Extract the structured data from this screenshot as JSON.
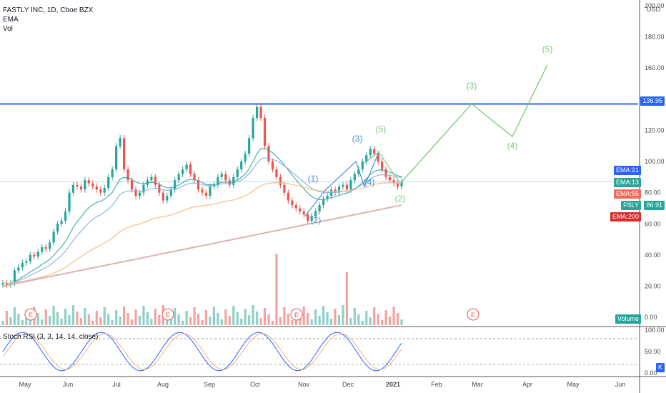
{
  "legend": {
    "title": "FASTLY INC, 1D, Cboe BZX",
    "line2": "EMA",
    "line3": "Vol"
  },
  "rsi_label": "Stoch RSI (3, 3, 14, 14, close)",
  "currency": "USD",
  "badges": {
    "price_line": "136.95",
    "ema21": "EMA:21",
    "ema13": "EMA:13",
    "ema55": "EMA:55",
    "fsly": "FSLY",
    "fsly_value": "86.91",
    "ema200": "EMA:200",
    "volume": "Volume",
    "k": "K"
  },
  "colors": {
    "up": "#26a69a",
    "down": "#ef5350",
    "ema200": "#d2a8a0",
    "ema55": "#f7c08a",
    "ema21": "#2962ff",
    "ema13": "#27a699",
    "projection": "#7dc67a",
    "wave_blue": "#4a90d9",
    "resistance": "#2962ff"
  },
  "chart_data": {
    "type": "candlestick",
    "title": "FASTLY INC, 1D, Cboe BZX",
    "ylim": [
      -5,
      200
    ],
    "y_ticks": [
      "200.00",
      "180.00",
      "160.00",
      "140.00",
      "120.00",
      "100.00",
      "80.00",
      "60.00",
      "40.00",
      "20.00",
      "0.00"
    ],
    "y_tick_values": [
      200,
      180,
      160,
      140,
      120,
      100,
      80,
      60,
      40,
      20,
      0
    ],
    "x_ticks": [
      "May",
      "Jun",
      "Jul",
      "Aug",
      "Sep",
      "Oct",
      "Nov",
      "Dec",
      "2021",
      "Feb",
      "Mar",
      "Apr",
      "May",
      "Jun"
    ],
    "resistance_level": 136.95,
    "last_price": 86.91,
    "series": [
      {
        "name": "FSLY",
        "type": "candles",
        "points": [
          [
            21,
            22
          ],
          [
            22,
            21
          ],
          [
            21,
            22
          ],
          [
            22,
            30
          ],
          [
            30,
            32
          ],
          [
            32,
            35
          ],
          [
            35,
            36
          ],
          [
            36,
            40
          ],
          [
            40,
            39
          ],
          [
            39,
            42
          ],
          [
            42,
            45
          ],
          [
            45,
            44
          ],
          [
            44,
            48
          ],
          [
            48,
            55
          ],
          [
            55,
            60
          ],
          [
            60,
            62
          ],
          [
            62,
            68
          ],
          [
            68,
            80
          ],
          [
            80,
            85
          ],
          [
            85,
            84
          ],
          [
            84,
            82
          ],
          [
            82,
            88
          ],
          [
            88,
            86
          ],
          [
            86,
            84
          ],
          [
            84,
            82
          ],
          [
            82,
            80
          ],
          [
            80,
            83
          ],
          [
            83,
            90
          ],
          [
            90,
            95
          ],
          [
            95,
            110
          ],
          [
            110,
            115
          ],
          [
            115,
            95
          ],
          [
            95,
            88
          ],
          [
            88,
            82
          ],
          [
            82,
            78
          ],
          [
            78,
            80
          ],
          [
            80,
            85
          ],
          [
            85,
            88
          ],
          [
            88,
            90
          ],
          [
            90,
            85
          ],
          [
            85,
            80
          ],
          [
            80,
            75
          ],
          [
            75,
            78
          ],
          [
            78,
            82
          ],
          [
            82,
            88
          ],
          [
            88,
            92
          ],
          [
            92,
            95
          ],
          [
            95,
            98
          ],
          [
            98,
            92
          ],
          [
            92,
            88
          ],
          [
            88,
            82
          ],
          [
            82,
            80
          ],
          [
            80,
            78
          ],
          [
            78,
            84
          ],
          [
            84,
            85
          ],
          [
            85,
            90
          ],
          [
            90,
            92
          ],
          [
            92,
            88
          ],
          [
            88,
            85
          ],
          [
            85,
            90
          ],
          [
            90,
            95
          ],
          [
            95,
            100
          ],
          [
            100,
            105
          ],
          [
            105,
            115
          ],
          [
            115,
            128
          ],
          [
            128,
            135
          ],
          [
            135,
            128
          ],
          [
            128,
            110
          ],
          [
            110,
            100
          ],
          [
            100,
            95
          ],
          [
            95,
            90
          ],
          [
            90,
            85
          ],
          [
            85,
            80
          ],
          [
            80,
            75
          ],
          [
            75,
            72
          ],
          [
            72,
            70
          ],
          [
            70,
            68
          ],
          [
            68,
            66
          ],
          [
            66,
            62
          ],
          [
            62,
            65
          ],
          [
            65,
            68
          ],
          [
            68,
            72
          ],
          [
            72,
            76
          ],
          [
            76,
            78
          ],
          [
            78,
            82
          ],
          [
            82,
            80
          ],
          [
            80,
            84
          ],
          [
            84,
            85
          ],
          [
            85,
            82
          ],
          [
            82,
            88
          ],
          [
            88,
            92
          ],
          [
            92,
            95
          ],
          [
            95,
            100
          ],
          [
            100,
            104
          ],
          [
            104,
            108
          ],
          [
            108,
            105
          ],
          [
            105,
            100
          ],
          [
            100,
            95
          ],
          [
            95,
            90
          ],
          [
            90,
            88
          ],
          [
            88,
            86
          ],
          [
            86,
            84
          ],
          [
            84,
            86.91
          ]
        ]
      },
      {
        "name": "EMA:13",
        "type": "line"
      },
      {
        "name": "EMA:21",
        "type": "line"
      },
      {
        "name": "EMA:55",
        "type": "line"
      },
      {
        "name": "EMA:200",
        "type": "line"
      }
    ],
    "wave_labels_blue": [
      "(1)",
      "(2)",
      "(3)",
      "(4)"
    ],
    "wave_labels_green": [
      "(5)",
      "(2)",
      "(3)",
      "(4)",
      "(5)"
    ],
    "projection_path_values": [
      86.91,
      137,
      116,
      162
    ]
  }
}
